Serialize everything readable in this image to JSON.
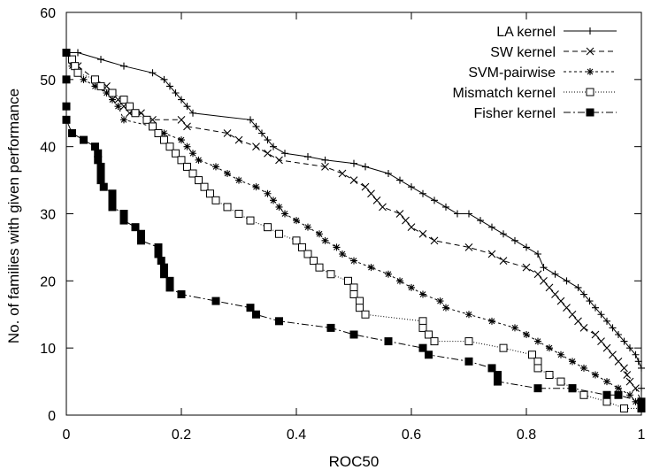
{
  "chart_data": {
    "type": "line",
    "title": "",
    "xlabel": "ROC50",
    "ylabel": "No. of families with given performance",
    "xlim": [
      0,
      1
    ],
    "ylim": [
      0,
      60
    ],
    "xticks": [
      0,
      0.2,
      0.4,
      0.6,
      0.8,
      1
    ],
    "xtick_labels": [
      "0",
      "0.2",
      "0.4",
      "0.6",
      "0.8",
      "1"
    ],
    "yticks": [
      0,
      10,
      20,
      30,
      40,
      50,
      60
    ],
    "ytick_labels": [
      "0",
      "10",
      "20",
      "30",
      "40",
      "50",
      "60"
    ],
    "grid": false,
    "legend_position": "top-right",
    "series": [
      {
        "name": "LA kernel",
        "line_style": "solid",
        "marker": "plus",
        "points": [
          [
            0,
            54
          ],
          [
            0.02,
            54
          ],
          [
            0.06,
            53
          ],
          [
            0.1,
            52
          ],
          [
            0.15,
            51
          ],
          [
            0.17,
            50
          ],
          [
            0.18,
            49
          ],
          [
            0.19,
            48
          ],
          [
            0.2,
            47
          ],
          [
            0.21,
            46
          ],
          [
            0.22,
            45
          ],
          [
            0.32,
            44
          ],
          [
            0.33,
            43
          ],
          [
            0.34,
            42
          ],
          [
            0.35,
            41
          ],
          [
            0.36,
            40
          ],
          [
            0.38,
            39
          ],
          [
            0.42,
            38.5
          ],
          [
            0.45,
            38
          ],
          [
            0.5,
            37.5
          ],
          [
            0.52,
            37
          ],
          [
            0.56,
            36
          ],
          [
            0.58,
            35
          ],
          [
            0.6,
            34
          ],
          [
            0.62,
            33
          ],
          [
            0.64,
            32
          ],
          [
            0.66,
            31
          ],
          [
            0.68,
            30
          ],
          [
            0.7,
            30
          ],
          [
            0.72,
            29
          ],
          [
            0.74,
            28
          ],
          [
            0.76,
            27
          ],
          [
            0.78,
            26
          ],
          [
            0.8,
            25
          ],
          [
            0.82,
            24
          ],
          [
            0.83,
            22
          ],
          [
            0.85,
            21
          ],
          [
            0.87,
            20
          ],
          [
            0.89,
            19
          ],
          [
            0.9,
            18
          ],
          [
            0.91,
            17
          ],
          [
            0.92,
            16
          ],
          [
            0.93,
            15
          ],
          [
            0.94,
            14
          ],
          [
            0.95,
            13
          ],
          [
            0.96,
            12
          ],
          [
            0.97,
            11
          ],
          [
            0.98,
            10
          ],
          [
            0.99,
            9
          ],
          [
            0.995,
            8
          ],
          [
            1,
            7
          ],
          [
            1,
            4
          ],
          [
            1,
            2
          ]
        ]
      },
      {
        "name": "SW kernel",
        "line_style": "dashed",
        "marker": "cross",
        "points": [
          [
            0,
            54
          ],
          [
            0.02,
            52
          ],
          [
            0.05,
            50
          ],
          [
            0.07,
            49
          ],
          [
            0.08,
            48
          ],
          [
            0.09,
            47
          ],
          [
            0.1,
            46
          ],
          [
            0.11,
            45
          ],
          [
            0.13,
            45
          ],
          [
            0.15,
            44
          ],
          [
            0.2,
            44
          ],
          [
            0.21,
            43
          ],
          [
            0.28,
            42
          ],
          [
            0.3,
            41
          ],
          [
            0.33,
            40
          ],
          [
            0.35,
            39
          ],
          [
            0.37,
            38
          ],
          [
            0.45,
            37
          ],
          [
            0.48,
            36
          ],
          [
            0.5,
            35
          ],
          [
            0.52,
            34
          ],
          [
            0.53,
            33
          ],
          [
            0.54,
            32
          ],
          [
            0.55,
            31
          ],
          [
            0.58,
            30
          ],
          [
            0.59,
            29
          ],
          [
            0.6,
            28
          ],
          [
            0.62,
            27
          ],
          [
            0.64,
            26
          ],
          [
            0.7,
            25
          ],
          [
            0.74,
            24
          ],
          [
            0.76,
            23
          ],
          [
            0.8,
            22
          ],
          [
            0.82,
            21
          ],
          [
            0.83,
            20
          ],
          [
            0.84,
            19
          ],
          [
            0.85,
            18
          ],
          [
            0.86,
            17
          ],
          [
            0.87,
            16
          ],
          [
            0.88,
            15
          ],
          [
            0.89,
            14
          ],
          [
            0.9,
            13
          ],
          [
            0.92,
            12
          ],
          [
            0.93,
            11
          ],
          [
            0.94,
            10
          ],
          [
            0.95,
            9
          ],
          [
            0.96,
            8
          ],
          [
            0.97,
            7
          ],
          [
            0.975,
            6
          ],
          [
            0.98,
            5
          ],
          [
            0.99,
            4
          ],
          [
            1,
            2
          ]
        ]
      },
      {
        "name": "SVM-pairwise",
        "line_style": "dotted",
        "marker": "star",
        "points": [
          [
            0,
            54
          ],
          [
            0.01,
            52
          ],
          [
            0.02,
            51
          ],
          [
            0.03,
            50
          ],
          [
            0.05,
            49
          ],
          [
            0.07,
            48
          ],
          [
            0.08,
            47
          ],
          [
            0.09,
            46
          ],
          [
            0.1,
            44
          ],
          [
            0.15,
            43
          ],
          [
            0.17,
            42
          ],
          [
            0.2,
            41
          ],
          [
            0.21,
            40
          ],
          [
            0.22,
            39
          ],
          [
            0.23,
            38
          ],
          [
            0.26,
            37
          ],
          [
            0.28,
            36
          ],
          [
            0.3,
            35
          ],
          [
            0.33,
            34
          ],
          [
            0.35,
            33
          ],
          [
            0.36,
            32
          ],
          [
            0.37,
            31
          ],
          [
            0.38,
            30
          ],
          [
            0.4,
            29
          ],
          [
            0.42,
            28
          ],
          [
            0.44,
            27
          ],
          [
            0.45,
            26
          ],
          [
            0.47,
            25
          ],
          [
            0.48,
            24
          ],
          [
            0.5,
            23
          ],
          [
            0.53,
            22
          ],
          [
            0.56,
            21
          ],
          [
            0.58,
            20
          ],
          [
            0.6,
            19
          ],
          [
            0.62,
            18
          ],
          [
            0.65,
            17
          ],
          [
            0.66,
            16
          ],
          [
            0.7,
            15
          ],
          [
            0.74,
            14
          ],
          [
            0.78,
            13
          ],
          [
            0.8,
            12
          ],
          [
            0.82,
            11
          ],
          [
            0.84,
            10
          ],
          [
            0.86,
            9
          ],
          [
            0.88,
            8
          ],
          [
            0.9,
            7
          ],
          [
            0.92,
            6
          ],
          [
            0.94,
            5
          ],
          [
            0.96,
            4
          ],
          [
            0.98,
            3
          ],
          [
            0.99,
            2
          ],
          [
            1,
            1
          ]
        ]
      },
      {
        "name": "Mismatch kernel",
        "line_style": "dotted-fine",
        "marker": "open-square",
        "points": [
          [
            0,
            54
          ],
          [
            0.01,
            53
          ],
          [
            0.015,
            52
          ],
          [
            0.02,
            51
          ],
          [
            0.05,
            50
          ],
          [
            0.06,
            49
          ],
          [
            0.08,
            48
          ],
          [
            0.1,
            47
          ],
          [
            0.11,
            46
          ],
          [
            0.12,
            45
          ],
          [
            0.14,
            44
          ],
          [
            0.15,
            43
          ],
          [
            0.16,
            42
          ],
          [
            0.17,
            41
          ],
          [
            0.18,
            40
          ],
          [
            0.19,
            39
          ],
          [
            0.2,
            38
          ],
          [
            0.21,
            37
          ],
          [
            0.22,
            36
          ],
          [
            0.23,
            35
          ],
          [
            0.24,
            34
          ],
          [
            0.25,
            33
          ],
          [
            0.26,
            32
          ],
          [
            0.28,
            31
          ],
          [
            0.3,
            30
          ],
          [
            0.32,
            29
          ],
          [
            0.35,
            28
          ],
          [
            0.37,
            27
          ],
          [
            0.4,
            26
          ],
          [
            0.41,
            25
          ],
          [
            0.42,
            24
          ],
          [
            0.43,
            23
          ],
          [
            0.44,
            22
          ],
          [
            0.46,
            21
          ],
          [
            0.49,
            20
          ],
          [
            0.5,
            19
          ],
          [
            0.5,
            18
          ],
          [
            0.51,
            17
          ],
          [
            0.51,
            16
          ],
          [
            0.52,
            15
          ],
          [
            0.62,
            14
          ],
          [
            0.62,
            13
          ],
          [
            0.63,
            12
          ],
          [
            0.64,
            11
          ],
          [
            0.7,
            11
          ],
          [
            0.76,
            10
          ],
          [
            0.81,
            9
          ],
          [
            0.82,
            8
          ],
          [
            0.82,
            7
          ],
          [
            0.84,
            6
          ],
          [
            0.86,
            5
          ],
          [
            0.88,
            4
          ],
          [
            0.9,
            3
          ],
          [
            0.94,
            2
          ],
          [
            0.97,
            1
          ],
          [
            1,
            1
          ]
        ]
      },
      {
        "name": "Fisher kernel",
        "line_style": "dash-dot",
        "marker": "filled-square",
        "points": [
          [
            0,
            54
          ],
          [
            0,
            50
          ],
          [
            0,
            46
          ],
          [
            0,
            44
          ],
          [
            0.01,
            42
          ],
          [
            0.03,
            41
          ],
          [
            0.05,
            40
          ],
          [
            0.055,
            39
          ],
          [
            0.055,
            38
          ],
          [
            0.06,
            37
          ],
          [
            0.06,
            36
          ],
          [
            0.06,
            35
          ],
          [
            0.065,
            34
          ],
          [
            0.08,
            33
          ],
          [
            0.08,
            32
          ],
          [
            0.08,
            31
          ],
          [
            0.1,
            30
          ],
          [
            0.1,
            29
          ],
          [
            0.12,
            28
          ],
          [
            0.13,
            27
          ],
          [
            0.13,
            26
          ],
          [
            0.16,
            25
          ],
          [
            0.16,
            24
          ],
          [
            0.165,
            23
          ],
          [
            0.17,
            22
          ],
          [
            0.17,
            21
          ],
          [
            0.18,
            20
          ],
          [
            0.18,
            19
          ],
          [
            0.2,
            18
          ],
          [
            0.26,
            17
          ],
          [
            0.32,
            16
          ],
          [
            0.33,
            15
          ],
          [
            0.37,
            14
          ],
          [
            0.46,
            13
          ],
          [
            0.5,
            12
          ],
          [
            0.56,
            11
          ],
          [
            0.62,
            10
          ],
          [
            0.63,
            9
          ],
          [
            0.7,
            8
          ],
          [
            0.74,
            7
          ],
          [
            0.75,
            6
          ],
          [
            0.75,
            5
          ],
          [
            0.82,
            4
          ],
          [
            0.88,
            4
          ],
          [
            0.94,
            3
          ],
          [
            0.96,
            3
          ],
          [
            1,
            2
          ],
          [
            1,
            1
          ]
        ]
      }
    ]
  }
}
